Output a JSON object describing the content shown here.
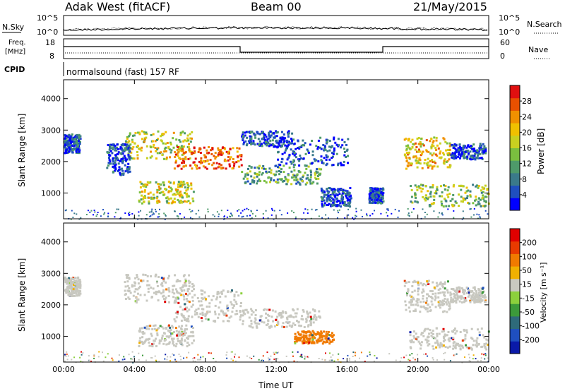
{
  "header": {
    "station": "Adak West (fitACF)",
    "beam": "Beam 00",
    "date": "21/May/2015"
  },
  "noise_panel": {
    "left_label": "N.Sky",
    "right_label": "N.Search",
    "tick_top": "10^5",
    "tick_bottom": "10^0"
  },
  "freq_panel": {
    "left_label_1": "Freq.",
    "left_label_2": "[MHz]",
    "left_ticks": [
      "18",
      "8"
    ],
    "right_label": "Nave",
    "right_ticks": [
      "60",
      "0"
    ]
  },
  "cpid": {
    "label": "CPID",
    "text": "normalsound (fast) 157 RF"
  },
  "colors": {
    "power": [
      "#0000ff",
      "#1f4fbf",
      "#3a7a8a",
      "#4e9a6a",
      "#7abf3f",
      "#c8d020",
      "#f0c000",
      "#f09000",
      "#e85000",
      "#e01010"
    ],
    "velocity": [
      "#0a1aa8",
      "#1f4fbf",
      "#2e6a7a",
      "#3c9a3a",
      "#8cd03c",
      "#c8c8c0",
      "#f0b000",
      "#f07a00",
      "#e83a00",
      "#e00000"
    ]
  },
  "chart_data": [
    {
      "type": "heatmap",
      "name": "power",
      "ylabel": "Slant Range [km]",
      "ylim": [
        180,
        4600
      ],
      "yticks": [
        1000,
        2000,
        3000,
        4000
      ],
      "xlim": [
        0,
        24
      ],
      "xticks": [
        "00:00",
        "04:00",
        "08:00",
        "12:00",
        "16:00",
        "20:00",
        "00:00"
      ],
      "colorbar_label": "Power [dB]",
      "colorbar_ticks": [
        "4",
        "8",
        "12",
        "16",
        "20",
        "24",
        "28"
      ],
      "regions": [
        {
          "t": [
            0.0,
            0.9
          ],
          "r": [
            2300,
            2900
          ],
          "level": 1
        },
        {
          "t": [
            3.4,
            7.3
          ],
          "r": [
            2100,
            3000
          ],
          "level": 5
        },
        {
          "t": [
            6.2,
            10.0
          ],
          "r": [
            1800,
            2500
          ],
          "level": 8
        },
        {
          "t": [
            4.2,
            7.3
          ],
          "r": [
            700,
            1400
          ],
          "level": 5
        },
        {
          "t": [
            2.4,
            3.7
          ],
          "r": [
            1600,
            2600
          ],
          "level": 1
        },
        {
          "t": [
            10.0,
            13.0
          ],
          "r": [
            2500,
            3000
          ],
          "level": 1
        },
        {
          "t": [
            10.0,
            14.5
          ],
          "r": [
            1300,
            1900
          ],
          "level": 3
        },
        {
          "t": [
            12.0,
            16.0
          ],
          "r": [
            1900,
            2800
          ],
          "level": 1
        },
        {
          "t": [
            14.5,
            16.2
          ],
          "r": [
            600,
            1200
          ],
          "level": 1
        },
        {
          "t": [
            17.2,
            18.0
          ],
          "r": [
            700,
            1200
          ],
          "level": 1
        },
        {
          "t": [
            19.2,
            21.8
          ],
          "r": [
            1800,
            2800
          ],
          "level": 6
        },
        {
          "t": [
            19.5,
            24.0
          ],
          "r": [
            600,
            1300
          ],
          "level": 4
        },
        {
          "t": [
            21.8,
            23.8
          ],
          "r": [
            2100,
            2600
          ],
          "level": 1
        }
      ]
    },
    {
      "type": "heatmap",
      "name": "velocity",
      "ylabel": "Slant Range [km]",
      "ylim": [
        180,
        4600
      ],
      "yticks": [
        1000,
        2000,
        3000,
        4000
      ],
      "xlim": [
        0,
        24
      ],
      "xticks": [
        "00:00",
        "04:00",
        "08:00",
        "12:00",
        "16:00",
        "20:00",
        "00:00"
      ],
      "xlabel": "Time UT",
      "colorbar_label": "Velocity [m s⁻¹]",
      "colorbar_ticks": [
        "200",
        "100",
        "50",
        "15",
        "-15",
        "-50",
        "-100",
        "-200"
      ],
      "regions": [
        {
          "t": [
            0.0,
            0.9
          ],
          "r": [
            2300,
            2900
          ],
          "level": 5
        },
        {
          "t": [
            3.4,
            7.3
          ],
          "r": [
            2100,
            3000
          ],
          "level": 5
        },
        {
          "t": [
            6.2,
            10.0
          ],
          "r": [
            1500,
            2500
          ],
          "level": 5
        },
        {
          "t": [
            4.2,
            7.3
          ],
          "r": [
            700,
            1400
          ],
          "level": 5
        },
        {
          "t": [
            10.0,
            14.5
          ],
          "r": [
            1300,
            1900
          ],
          "level": 5
        },
        {
          "t": [
            13.0,
            15.2
          ],
          "r": [
            800,
            1200
          ],
          "level": 7
        },
        {
          "t": [
            19.2,
            21.8
          ],
          "r": [
            1800,
            2800
          ],
          "level": 5
        },
        {
          "t": [
            19.5,
            24.0
          ],
          "r": [
            600,
            1300
          ],
          "level": 5
        },
        {
          "t": [
            21.8,
            23.8
          ],
          "r": [
            2100,
            2600
          ],
          "level": 5
        }
      ]
    }
  ]
}
